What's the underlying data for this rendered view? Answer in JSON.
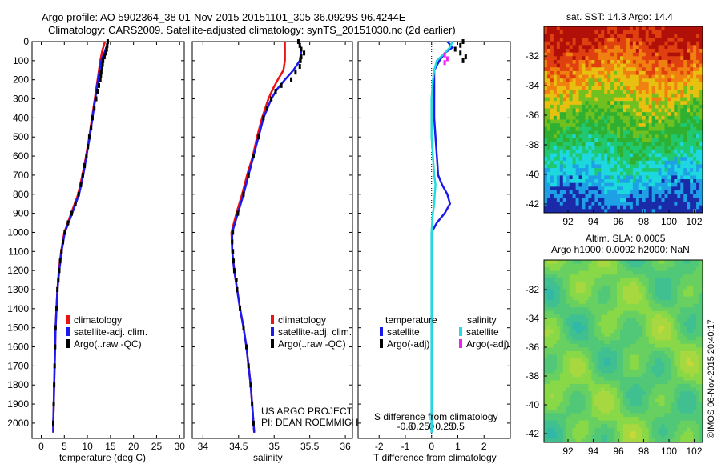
{
  "header": {
    "title_line1": "Argo profile: AO 5902364_38 01-Nov-2015 20151101_305 36.0929S 96.4244E",
    "title_line2": "Climatology: CARS2009. Satellite-adjusted climatology: synTS_20151030.nc (2d earlier)"
  },
  "colors": {
    "climatology": "#ee1111",
    "satellite": "#1a1aee",
    "argo": "#000000",
    "satellite_salinity": "#22dddd",
    "argo_salinity": "#ee22ee"
  },
  "chart_data": [
    {
      "type": "line",
      "panel": "temperature",
      "xlabel": "temperature (deg C)",
      "ylabel": "",
      "xlim": [
        -2,
        31
      ],
      "ylim": [
        2080,
        0
      ],
      "xticks": [
        "0",
        "5",
        "10",
        "15",
        "20",
        "25",
        "30"
      ],
      "yticks": [
        "0",
        "100",
        "200",
        "300",
        "400",
        "500",
        "600",
        "700",
        "800",
        "900",
        "1000",
        "1100",
        "1200",
        "1300",
        "1400",
        "1500",
        "1600",
        "1700",
        "1800",
        "1900",
        "2000"
      ],
      "series": [
        {
          "name": "climatology",
          "depth": [
            0,
            50,
            100,
            200,
            300,
            400,
            500,
            600,
            700,
            800,
            900,
            1000,
            1100,
            1200,
            1300,
            1400,
            1500,
            1600,
            1700,
            1800,
            1900,
            2000,
            2050
          ],
          "values": [
            13.8,
            13.2,
            12.8,
            12.2,
            11.6,
            11.0,
            10.4,
            9.7,
            8.9,
            8.0,
            6.5,
            5.0,
            4.3,
            3.8,
            3.5,
            3.3,
            3.1,
            3.0,
            2.9,
            2.8,
            2.7,
            2.6,
            2.6
          ]
        },
        {
          "name": "satellite-adj. clim.",
          "depth": [
            0,
            50,
            100,
            200,
            300,
            400,
            500,
            600,
            700,
            800,
            900,
            1000,
            1100,
            1200,
            1300,
            1400,
            1500,
            1600,
            1700,
            1800,
            1900,
            2000,
            2050
          ],
          "values": [
            14.5,
            13.8,
            13.0,
            12.3,
            11.7,
            11.1,
            10.5,
            9.8,
            9.1,
            8.2,
            6.7,
            5.1,
            4.4,
            3.9,
            3.5,
            3.3,
            3.1,
            3.0,
            2.9,
            2.8,
            2.7,
            2.6,
            2.6
          ]
        },
        {
          "name": "Argo(..raw -QC)",
          "depth": [
            0,
            20,
            40,
            60,
            80,
            100,
            120,
            140,
            160,
            180,
            200,
            230,
            260,
            300,
            350,
            400,
            450,
            500,
            550,
            600,
            650,
            700,
            750,
            800,
            850,
            900,
            950,
            1000,
            1050,
            1100,
            1150,
            1200,
            1250,
            1300,
            1400,
            1500,
            1600,
            1700,
            1800,
            1900,
            2000
          ],
          "values": [
            14.4,
            14.3,
            14.2,
            14.0,
            13.7,
            13.4,
            13.3,
            13.2,
            13.0,
            12.9,
            12.8,
            12.5,
            12.2,
            11.9,
            11.5,
            11.1,
            10.8,
            10.4,
            10.1,
            9.8,
            9.4,
            9.0,
            8.6,
            8.1,
            7.4,
            6.6,
            5.8,
            5.1,
            4.7,
            4.4,
            4.1,
            3.9,
            3.7,
            3.5,
            3.3,
            3.1,
            3.0,
            2.9,
            2.8,
            2.7,
            2.6
          ]
        }
      ]
    },
    {
      "type": "line",
      "panel": "salinity",
      "xlabel": "salinity",
      "ylabel": "",
      "xlim": [
        33.85,
        36.1
      ],
      "ylim": [
        2080,
        0
      ],
      "xticks": [
        "34",
        "34.5",
        "35",
        "35.5",
        "36"
      ],
      "series": [
        {
          "name": "climatology",
          "depth": [
            0,
            50,
            100,
            150,
            200,
            250,
            300,
            400,
            500,
            600,
            700,
            800,
            900,
            1000,
            1100,
            1200,
            1300,
            1400,
            1500,
            1600,
            1700,
            1800,
            1900,
            2000,
            2050
          ],
          "values": [
            35.15,
            35.15,
            35.15,
            35.13,
            35.05,
            34.98,
            34.92,
            34.83,
            34.76,
            34.7,
            34.62,
            34.55,
            34.47,
            34.4,
            34.41,
            34.44,
            34.48,
            34.52,
            34.57,
            34.61,
            34.64,
            34.67,
            34.69,
            34.71,
            34.72
          ]
        },
        {
          "name": "satellite-adj. clim.",
          "depth": [
            0,
            50,
            100,
            150,
            200,
            250,
            300,
            400,
            500,
            600,
            700,
            800,
            900,
            1000,
            1100,
            1200,
            1300,
            1400,
            1500,
            1600,
            1700,
            1800,
            1900,
            2000,
            2050
          ],
          "values": [
            35.35,
            35.38,
            35.36,
            35.27,
            35.15,
            35.04,
            34.96,
            34.85,
            34.78,
            34.71,
            34.64,
            34.57,
            34.49,
            34.41,
            34.41,
            34.44,
            34.48,
            34.52,
            34.57,
            34.61,
            34.64,
            34.67,
            34.69,
            34.71,
            34.72
          ]
        },
        {
          "name": "Argo(..raw -QC)",
          "depth": [
            0,
            20,
            40,
            60,
            80,
            100,
            130,
            160,
            200,
            230,
            260,
            300,
            350,
            400,
            500,
            600,
            700,
            800,
            900,
            1000,
            1050,
            1100,
            1150,
            1200,
            1250,
            1300,
            1400,
            1500,
            1600,
            1700,
            1800,
            1900,
            2000
          ],
          "values": [
            35.34,
            35.36,
            35.38,
            35.42,
            35.38,
            35.37,
            35.36,
            35.3,
            35.24,
            35.1,
            35.02,
            34.96,
            34.9,
            34.85,
            34.78,
            34.71,
            34.64,
            34.57,
            34.49,
            34.42,
            34.41,
            34.42,
            34.43,
            34.44,
            34.47,
            34.48,
            34.52,
            34.57,
            34.61,
            34.64,
            34.67,
            34.69,
            34.71
          ]
        }
      ]
    },
    {
      "type": "line",
      "panel": "difference",
      "xlabel": "T difference from climatology",
      "xlabel2": "S difference from climatology",
      "xlim": [
        -2.8,
        3.0
      ],
      "ylim": [
        2080,
        0
      ],
      "xticks": [
        "-2",
        "-1",
        "0",
        "1",
        "2"
      ],
      "sticks": [
        "-0.5",
        "-0.25",
        "0",
        "0.25",
        "0.5"
      ],
      "series": [
        {
          "name": "temperature satellite",
          "depth": [
            0,
            30,
            60,
            100,
            150,
            200,
            300,
            400,
            500,
            600,
            700,
            750,
            800,
            850,
            900,
            950,
            1000,
            1100,
            1300,
            1600,
            2000,
            2050
          ],
          "values": [
            0.6,
            0.8,
            0.5,
            0.3,
            0.1,
            0.1,
            0.1,
            0.1,
            0.15,
            0.2,
            0.25,
            0.4,
            0.6,
            0.7,
            0.5,
            0.2,
            0.0,
            0.0,
            0.0,
            0.0,
            0.0,
            0.0
          ]
        },
        {
          "name": "temperature Argo(-adj)",
          "depth": [
            0,
            20,
            40,
            60,
            80,
            100
          ],
          "values": [
            1.2,
            1.1,
            0.9,
            1.1,
            1.3,
            1.2
          ]
        },
        {
          "name": "salinity satellite",
          "depth": [
            0,
            30,
            60,
            100,
            150,
            200,
            300,
            400,
            500,
            600,
            700,
            750,
            800,
            850,
            900,
            950,
            1000,
            1100,
            1300,
            1600,
            2000,
            2050
          ],
          "values": [
            0.8,
            0.7,
            0.5,
            0.2,
            0.1,
            0.05,
            0.0,
            0.0,
            0.0,
            0.05,
            0.1,
            0.15,
            0.12,
            0.1,
            0.05,
            0.02,
            0.0,
            0.0,
            0.0,
            0.0,
            0.0,
            0.0
          ]
        },
        {
          "name": "salinity Argo(-adj)",
          "depth": [
            70,
            90,
            110
          ],
          "values": [
            0.5,
            0.6,
            0.5
          ]
        }
      ]
    }
  ],
  "legend_left": {
    "items": [
      "climatology",
      "satellite-adj. clim.",
      "Argo(..raw -QC)"
    ]
  },
  "legend_right": {
    "col1_header": "temperature",
    "col2_header": "salinity",
    "col1_items": [
      "satellite",
      "Argo(-adj)"
    ],
    "col2_items": [
      "satellite",
      "Argo(-adj)"
    ]
  },
  "project": {
    "line1": "US ARGO PROJECT",
    "line2": "PI: DEAN ROEMMICH"
  },
  "map_top": {
    "title": "sat. SST: 14.3 Argo: 14.4",
    "yticks": [
      "-32",
      "-34",
      "-36",
      "-38",
      "-40",
      "-42"
    ],
    "xticks": [
      "92",
      "94",
      "96",
      "98",
      "100",
      "102"
    ]
  },
  "map_bottom": {
    "title1": "Altim. SLA: 0.0005",
    "title2": "Argo h1000: 0.0092 h2000: NaN",
    "yticks": [
      "-32",
      "-34",
      "-36",
      "-38",
      "-40",
      "-42"
    ],
    "xticks": [
      "92",
      "94",
      "96",
      "98",
      "100",
      "102"
    ]
  },
  "credit": "©IMOS 06-Nov-2015 20:40:17"
}
